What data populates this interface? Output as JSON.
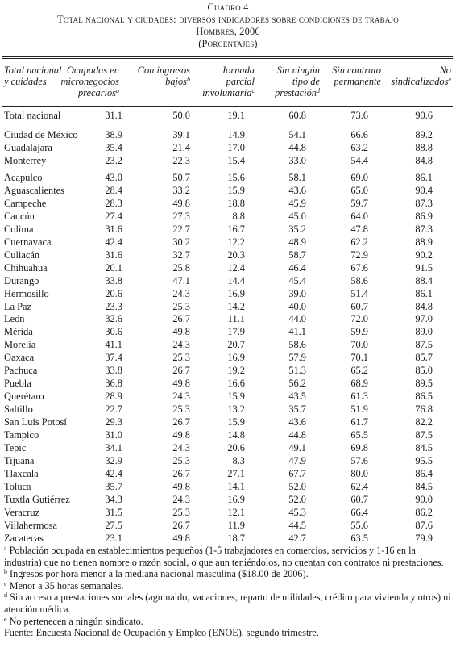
{
  "caption": {
    "label": "Cuadro 4",
    "title": "Total nacional y ciudades: diversos indicadores sobre condiciones de trabajo",
    "subtitle": "Hombres, 2006",
    "units": "(Porcentajes)"
  },
  "headers": [
    {
      "lines": [
        "Total nacional",
        "y cuidades"
      ],
      "sup": ""
    },
    {
      "lines": [
        "Ocupadas en",
        "micronegocios",
        "precarios"
      ],
      "sup": "a"
    },
    {
      "lines": [
        "Con ingresos",
        "bajos"
      ],
      "sup": "b"
    },
    {
      "lines": [
        "Jornada",
        "parcial",
        "involuntaria"
      ],
      "sup": "c"
    },
    {
      "lines": [
        "Sin ningún",
        "tipo de",
        "prestación"
      ],
      "sup": "d"
    },
    {
      "lines": [
        "Sin contrato",
        "permanente"
      ],
      "sup": ""
    },
    {
      "lines": [
        "No",
        "sindicalizados"
      ],
      "sup": "e"
    }
  ],
  "groups": [
    [
      {
        "name": "Total nacional",
        "values": [
          "31.1",
          "50.0",
          "19.1",
          "60.8",
          "73.6",
          "90.6"
        ]
      }
    ],
    [
      {
        "name": "Ciudad de México",
        "values": [
          "38.9",
          "39.1",
          "14.9",
          "54.1",
          "66.6",
          "89.2"
        ]
      },
      {
        "name": "Guadalajara",
        "values": [
          "35.4",
          "21.4",
          "17.0",
          "44.8",
          "63.2",
          "88.8"
        ]
      },
      {
        "name": "Monterrey",
        "values": [
          "23.2",
          "22.3",
          "15.4",
          "33.0",
          "54.4",
          "84.8"
        ]
      }
    ],
    [
      {
        "name": "Acapulco",
        "values": [
          "43.0",
          "50.7",
          "15.6",
          "58.1",
          "69.0",
          "86.1"
        ]
      },
      {
        "name": "Aguascalientes",
        "values": [
          "28.4",
          "33.2",
          "15.9",
          "43.6",
          "65.0",
          "90.4"
        ]
      },
      {
        "name": "Campeche",
        "values": [
          "28.3",
          "49.8",
          "18.8",
          "45.9",
          "59.7",
          "87.3"
        ]
      },
      {
        "name": "Cancún",
        "values": [
          "27.4",
          "27.3",
          "8.8",
          "45.0",
          "64.0",
          "86.9"
        ]
      },
      {
        "name": "Colima",
        "values": [
          "31.6",
          "22.7",
          "16.7",
          "35.2",
          "47.8",
          "87.3"
        ]
      },
      {
        "name": "Cuernavaca",
        "values": [
          "42.4",
          "30.2",
          "12.2",
          "48.9",
          "62.2",
          "88.9"
        ]
      },
      {
        "name": "Culiacán",
        "values": [
          "31.6",
          "32.7",
          "20.3",
          "58.7",
          "72.9",
          "90.2"
        ]
      },
      {
        "name": "Chihuahua",
        "values": [
          "20.1",
          "25.8",
          "12.4",
          "46.4",
          "67.6",
          "91.5"
        ]
      },
      {
        "name": "Durango",
        "values": [
          "33.8",
          "47.1",
          "14.4",
          "45.4",
          "58.6",
          "88.4"
        ]
      },
      {
        "name": "Hermosillo",
        "values": [
          "20.6",
          "24.3",
          "16.9",
          "39.0",
          "51.4",
          "86.1"
        ]
      },
      {
        "name": "La Paz",
        "values": [
          "23.3",
          "25.3",
          "14.2",
          "40.0",
          "60.7",
          "84.8"
        ]
      },
      {
        "name": "León",
        "values": [
          "32.6",
          "26.7",
          "11.1",
          "44.0",
          "72.0",
          "97.0"
        ]
      },
      {
        "name": "Mérida",
        "values": [
          "30.6",
          "49.8",
          "17.9",
          "41.1",
          "59.9",
          "89.0"
        ]
      },
      {
        "name": "Morelia",
        "values": [
          "41.1",
          "24.3",
          "20.7",
          "58.6",
          "70.0",
          "87.5"
        ]
      },
      {
        "name": "Oaxaca",
        "values": [
          "37.4",
          "25.3",
          "16.9",
          "57.9",
          "70.1",
          "85.7"
        ]
      },
      {
        "name": "Pachuca",
        "values": [
          "33.8",
          "26.7",
          "19.2",
          "51.3",
          "65.2",
          "85.0"
        ]
      },
      {
        "name": "Puebla",
        "values": [
          "36.8",
          "49.8",
          "16.6",
          "56.2",
          "68.9",
          "89.5"
        ]
      },
      {
        "name": "Querétaro",
        "values": [
          "28.9",
          "24.3",
          "15.9",
          "43.5",
          "61.3",
          "86.5"
        ]
      },
      {
        "name": "Saltillo",
        "values": [
          "22.7",
          "25.3",
          "13.2",
          "35.7",
          "51.9",
          "76.8"
        ]
      },
      {
        "name": "San Luis Potosí",
        "values": [
          "29.3",
          "26.7",
          "15.9",
          "43.6",
          "61.7",
          "82.2"
        ]
      },
      {
        "name": "Tampico",
        "values": [
          "31.0",
          "49.8",
          "14.8",
          "44.8",
          "65.5",
          "87.5"
        ]
      },
      {
        "name": "Tepic",
        "values": [
          "34.1",
          "24.3",
          "20.6",
          "49.1",
          "69.8",
          "84.5"
        ]
      },
      {
        "name": "Tijuana",
        "values": [
          "32.9",
          "25.3",
          "8.3",
          "47.9",
          "57.6",
          "95.5"
        ]
      },
      {
        "name": "Tlaxcala",
        "values": [
          "42.4",
          "26.7",
          "27.1",
          "67.7",
          "80.0",
          "86.4"
        ]
      },
      {
        "name": "Toluca",
        "values": [
          "35.7",
          "49.8",
          "14.1",
          "52.0",
          "62.4",
          "84.5"
        ]
      },
      {
        "name": "Tuxtla Gutiérrez",
        "values": [
          "34.3",
          "24.3",
          "16.9",
          "52.0",
          "60.7",
          "90.0"
        ]
      },
      {
        "name": "Veracruz",
        "values": [
          "31.5",
          "25.3",
          "12.1",
          "45.3",
          "66.4",
          "86.2"
        ]
      },
      {
        "name": "Villahermosa",
        "values": [
          "27.5",
          "26.7",
          "11.9",
          "44.5",
          "55.6",
          "87.6"
        ]
      },
      {
        "name": "Zacatecas",
        "values": [
          "23.1",
          "49.8",
          "18.7",
          "42.7",
          "63.5",
          "79.9"
        ]
      }
    ]
  ],
  "notes": [
    {
      "sup": "a",
      "text": " Población ocupada en establecimientos pequeños (1-5 trabajadores en comercios, servicios y 1-16 en la industria) que no tienen nombre o razón social, o que aun teniéndolos, no cuentan con contratos ni prestaciones."
    },
    {
      "sup": "b",
      "text": " Ingresos por hora menor a la mediana nacional masculina ($18.00 de 2006)."
    },
    {
      "sup": "c",
      "text": " Menor a 35 horas semanales."
    },
    {
      "sup": "d",
      "text": " Sin acceso a prestaciones sociales (aguinaldo, vacaciones, reparto de utilidades, crédito para vivienda y otros) ni atención médica."
    },
    {
      "sup": "e",
      "text": " No pertenecen a ningún sindicato."
    },
    {
      "sup": "",
      "text": "Fuente: Encuesta Nacional de Ocupación y Empleo (ENOE), segundo trimestre."
    }
  ]
}
